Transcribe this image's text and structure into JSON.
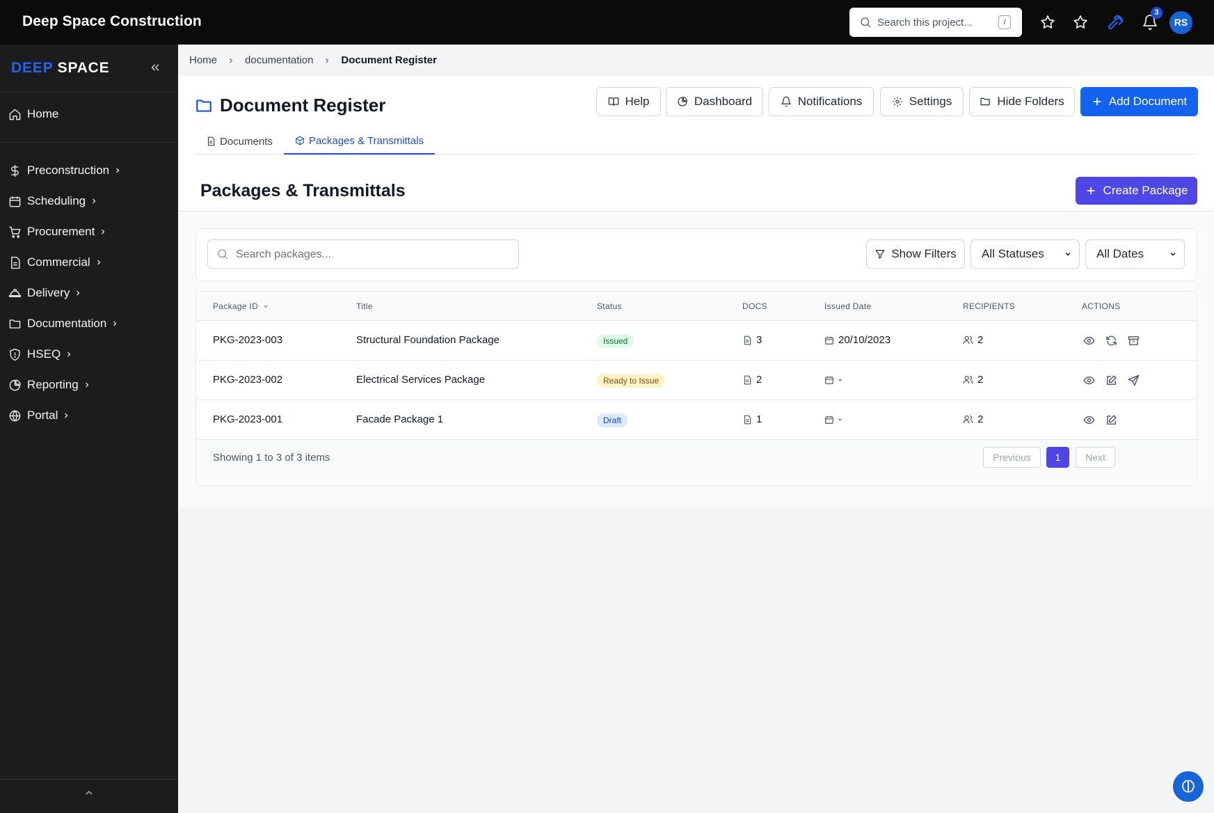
{
  "app": {
    "title": "Deep Space Construction"
  },
  "topbar": {
    "search_placeholder": "Search this project...",
    "search_shortcut": "/",
    "notification_count": "3",
    "avatar_initials": "RS"
  },
  "sidebar": {
    "logo_part1": "DEEP",
    "logo_part2": "SPACE",
    "home": "Home",
    "items": [
      {
        "label": "Preconstruction",
        "icon": "dollar-icon"
      },
      {
        "label": "Scheduling",
        "icon": "calendar-icon"
      },
      {
        "label": "Procurement",
        "icon": "cart-icon"
      },
      {
        "label": "Commercial",
        "icon": "document-icon"
      },
      {
        "label": "Delivery",
        "icon": "hard-hat-icon"
      },
      {
        "label": "Documentation",
        "icon": "folder-icon"
      },
      {
        "label": "HSEQ",
        "icon": "shield-icon"
      },
      {
        "label": "Reporting",
        "icon": "pie-chart-icon"
      },
      {
        "label": "Portal",
        "icon": "globe-icon"
      }
    ]
  },
  "breadcrumb": [
    "Home",
    "documentation",
    "Document Register"
  ],
  "header": {
    "title": "Document Register",
    "buttons": {
      "help": "Help",
      "dashboard": "Dashboard",
      "notifications": "Notifications",
      "settings": "Settings",
      "hide_folders": "Hide Folders",
      "add_document": "Add Document"
    },
    "tabs": [
      {
        "label": "Documents",
        "active": false
      },
      {
        "label": "Packages & Transmittals",
        "active": true
      }
    ]
  },
  "section": {
    "title": "Packages & Transmittals",
    "create_button": "Create Package"
  },
  "filters": {
    "search_placeholder": "Search packages...",
    "show_filters": "Show Filters",
    "status_select": "All Statuses",
    "date_select": "All Dates"
  },
  "table": {
    "columns": [
      "Package ID",
      "Title",
      "Status",
      "DOCS",
      "Issued Date",
      "RECIPIENTS",
      "ACTIONS"
    ],
    "rows": [
      {
        "id": "PKG-2023-003",
        "title": "Structural Foundation Package",
        "status": "Issued",
        "status_kind": "issued",
        "docs": "3",
        "issued_date": "20/10/2023",
        "recipients": "2",
        "actions": [
          "eye-icon",
          "refresh-icon",
          "archive-icon"
        ]
      },
      {
        "id": "PKG-2023-002",
        "title": "Electrical Services Package",
        "status": "Ready to Issue",
        "status_kind": "ready",
        "docs": "2",
        "issued_date": "-",
        "recipients": "2",
        "actions": [
          "eye-icon",
          "edit-icon",
          "send-icon"
        ]
      },
      {
        "id": "PKG-2023-001",
        "title": "Facade Package 1",
        "status": "Draft",
        "status_kind": "draft",
        "docs": "1",
        "issued_date": "-",
        "recipients": "2",
        "actions": [
          "eye-icon",
          "edit-icon"
        ]
      }
    ],
    "footer": {
      "showing": "Showing 1 to 3 of 3 items",
      "previous": "Previous",
      "current_page": "1",
      "next": "Next"
    }
  },
  "colors": {
    "primary": "#1462f0",
    "indigo": "#4f46e5",
    "topbar_bg": "#0b0b0c",
    "sidebar_bg": "#1c1c1e"
  }
}
